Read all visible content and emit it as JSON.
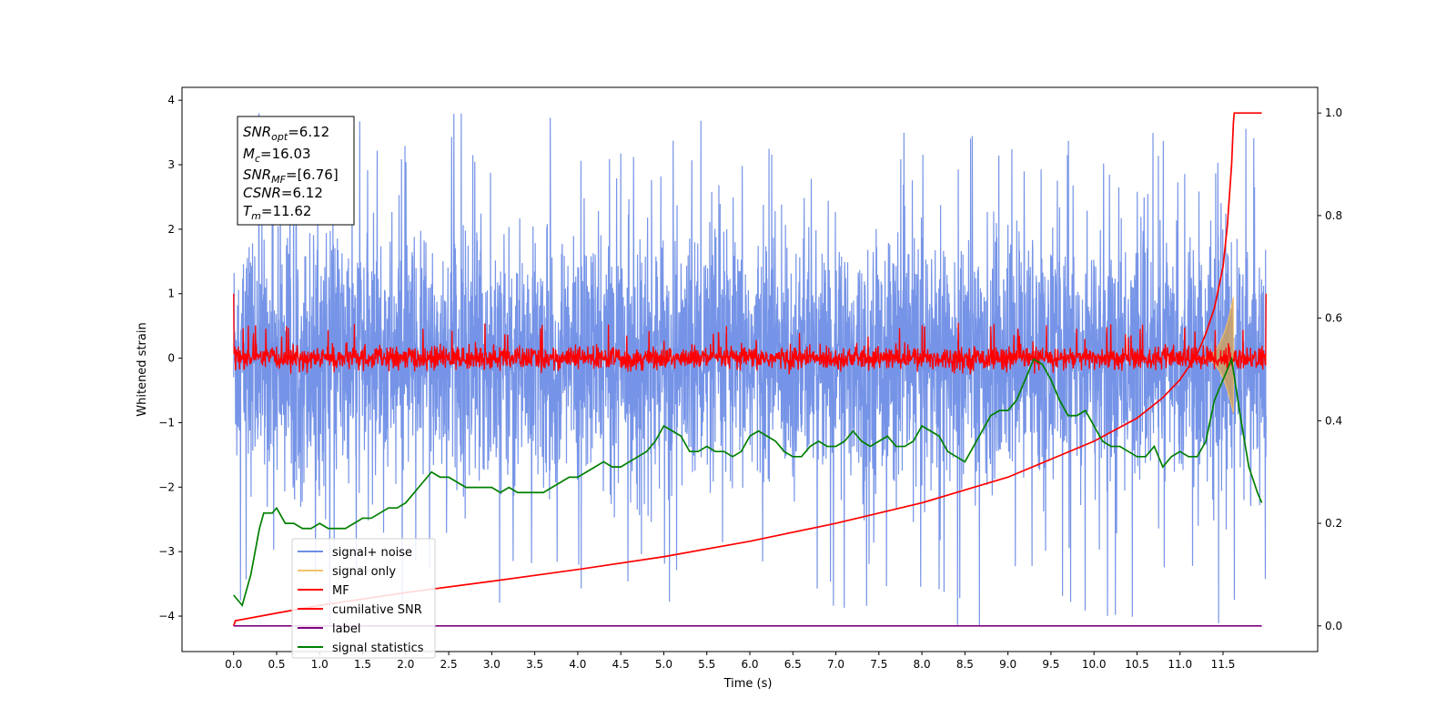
{
  "chart_data": {
    "type": "line",
    "xlabel": "Time (s)",
    "ylabel": "Whitened strain",
    "xlim": [
      -0.6,
      12.6
    ],
    "ylim_left": [
      -4.55,
      4.2
    ],
    "ylim_right": [
      -0.05,
      1.05
    ],
    "x_ticks": [
      0.0,
      0.5,
      1.0,
      1.5,
      2.0,
      2.5,
      3.0,
      3.5,
      4.0,
      4.5,
      5.0,
      5.5,
      6.0,
      6.5,
      7.0,
      7.5,
      8.0,
      8.5,
      9.0,
      9.5,
      10.0,
      10.5,
      11.0,
      11.5
    ],
    "x_tick_labels": [
      "0.0",
      "0.5",
      "1.0",
      "1.5",
      "2.0",
      "2.5",
      "3.0",
      "3.5",
      "4.0",
      "4.5",
      "5.0",
      "5.5",
      "6.0",
      "6.5",
      "7.0",
      "7.5",
      "8.0",
      "8.5",
      "9.0",
      "9.5",
      "10.0",
      "10.5",
      "11.0",
      "11.5"
    ],
    "y_left_ticks": [
      -4,
      -3,
      -2,
      -1,
      0,
      1,
      2,
      3,
      4
    ],
    "y_left_tick_labels": [
      "−4",
      "−3",
      "−2",
      "−1",
      "0",
      "1",
      "2",
      "3",
      "4"
    ],
    "y_right_ticks": [
      0.0,
      0.2,
      0.4,
      0.6,
      0.8,
      1.0
    ],
    "y_right_tick_labels": [
      "0.0",
      "0.2",
      "0.4",
      "0.6",
      "0.8",
      "1.0"
    ],
    "grid": false,
    "legend_placement": "lower-left",
    "colors": {
      "signal_noise": "#6f8ee6",
      "signal_only": "#f5c26b",
      "mf": "#ff0000",
      "cumulative_snr": "#ff0000",
      "label": "#800080",
      "signal_statistics": "#008000",
      "chirp_fill": "#c9a06b"
    },
    "annotations": {
      "snr_opt": {
        "symbol": "SNR",
        "sub": "opt",
        "value": "=6.12"
      },
      "mc": {
        "symbol": "M",
        "sub": "c",
        "value": "=16.03"
      },
      "snr_mf": {
        "symbol": "SNR",
        "sub": "MF",
        "value": "=[6.76]"
      },
      "csnr": {
        "symbol": "CSNR",
        "sub": "",
        "value": "=6.12"
      },
      "tm": {
        "symbol": "T",
        "sub": "m",
        "value": "=11.62"
      }
    },
    "series": [
      {
        "name": "signal+ noise",
        "axis": "left",
        "style": "noise-band",
        "description_values": {
          "x_range": [
            0.0,
            12.0
          ],
          "mean": 0.0,
          "typical_upper": 2.2,
          "typical_lower": -1.8,
          "max": 3.82,
          "min": -4.2
        }
      },
      {
        "name": "signal only",
        "axis": "left",
        "style": "chirp",
        "x_range": [
          11.2,
          11.62
        ],
        "peak_amplitude": 0.95
      },
      {
        "name": "MF",
        "axis": "left",
        "style": "noise-band",
        "description_values": {
          "x_range": [
            0.0,
            12.0
          ],
          "mean": 0.0,
          "typical_upper": 0.25,
          "typical_lower": -0.2,
          "max": 0.55,
          "min": -0.25,
          "start_value": 1.0,
          "end_value": 1.0
        }
      },
      {
        "name": "cumilative SNR",
        "axis": "right",
        "x": [
          0.0,
          0.02,
          0.5,
          1.0,
          2.0,
          3.0,
          4.0,
          5.0,
          6.0,
          7.0,
          8.0,
          8.5,
          9.0,
          9.5,
          10.0,
          10.5,
          10.8,
          11.0,
          11.2,
          11.3,
          11.4,
          11.5,
          11.55,
          11.6,
          11.62,
          11.63,
          11.95
        ],
        "values": [
          0.0,
          0.01,
          0.025,
          0.04,
          0.065,
          0.087,
          0.11,
          0.135,
          0.165,
          0.2,
          0.24,
          0.265,
          0.29,
          0.325,
          0.36,
          0.405,
          0.445,
          0.48,
          0.53,
          0.57,
          0.62,
          0.7,
          0.78,
          0.9,
          0.98,
          1.0,
          1.0
        ]
      },
      {
        "name": "label",
        "axis": "right",
        "x": [
          0.0,
          11.95
        ],
        "values": [
          0.0,
          0.0
        ]
      },
      {
        "name": "signal statistics",
        "axis": "right",
        "x": [
          0.0,
          0.1,
          0.2,
          0.3,
          0.35,
          0.45,
          0.5,
          0.6,
          0.7,
          0.8,
          0.9,
          1.0,
          1.1,
          1.2,
          1.3,
          1.4,
          1.5,
          1.6,
          1.7,
          1.8,
          1.9,
          2.0,
          2.1,
          2.2,
          2.3,
          2.4,
          2.5,
          2.6,
          2.7,
          2.8,
          2.9,
          3.0,
          3.1,
          3.2,
          3.3,
          3.4,
          3.5,
          3.6,
          3.7,
          3.8,
          3.9,
          4.0,
          4.1,
          4.2,
          4.3,
          4.4,
          4.5,
          4.6,
          4.7,
          4.8,
          4.9,
          5.0,
          5.1,
          5.2,
          5.3,
          5.4,
          5.5,
          5.6,
          5.7,
          5.8,
          5.9,
          6.0,
          6.1,
          6.2,
          6.3,
          6.4,
          6.5,
          6.6,
          6.7,
          6.8,
          6.9,
          7.0,
          7.1,
          7.2,
          7.3,
          7.4,
          7.5,
          7.6,
          7.7,
          7.8,
          7.9,
          8.0,
          8.1,
          8.2,
          8.3,
          8.4,
          8.5,
          8.6,
          8.7,
          8.8,
          8.9,
          9.0,
          9.1,
          9.2,
          9.3,
          9.4,
          9.5,
          9.6,
          9.7,
          9.8,
          9.9,
          10.0,
          10.1,
          10.2,
          10.3,
          10.4,
          10.5,
          10.6,
          10.7,
          10.8,
          10.9,
          11.0,
          11.1,
          11.2,
          11.3,
          11.4,
          11.5,
          11.6,
          11.7,
          11.8,
          11.9,
          11.95
        ],
        "values": [
          0.06,
          0.04,
          0.1,
          0.19,
          0.22,
          0.22,
          0.23,
          0.2,
          0.2,
          0.19,
          0.19,
          0.2,
          0.19,
          0.19,
          0.19,
          0.2,
          0.21,
          0.21,
          0.22,
          0.23,
          0.23,
          0.24,
          0.26,
          0.28,
          0.3,
          0.29,
          0.29,
          0.28,
          0.27,
          0.27,
          0.27,
          0.27,
          0.26,
          0.27,
          0.26,
          0.26,
          0.26,
          0.26,
          0.27,
          0.28,
          0.29,
          0.29,
          0.3,
          0.31,
          0.32,
          0.31,
          0.31,
          0.32,
          0.33,
          0.34,
          0.36,
          0.39,
          0.38,
          0.37,
          0.34,
          0.34,
          0.35,
          0.34,
          0.34,
          0.33,
          0.34,
          0.37,
          0.38,
          0.37,
          0.36,
          0.34,
          0.33,
          0.33,
          0.35,
          0.36,
          0.35,
          0.35,
          0.36,
          0.38,
          0.36,
          0.35,
          0.36,
          0.37,
          0.35,
          0.35,
          0.36,
          0.39,
          0.38,
          0.37,
          0.34,
          0.33,
          0.32,
          0.35,
          0.38,
          0.41,
          0.42,
          0.42,
          0.44,
          0.48,
          0.52,
          0.51,
          0.48,
          0.44,
          0.41,
          0.41,
          0.42,
          0.39,
          0.36,
          0.35,
          0.35,
          0.34,
          0.33,
          0.33,
          0.35,
          0.31,
          0.33,
          0.34,
          0.33,
          0.33,
          0.36,
          0.44,
          0.48,
          0.52,
          0.41,
          0.31,
          0.26,
          0.24
        ]
      }
    ]
  }
}
